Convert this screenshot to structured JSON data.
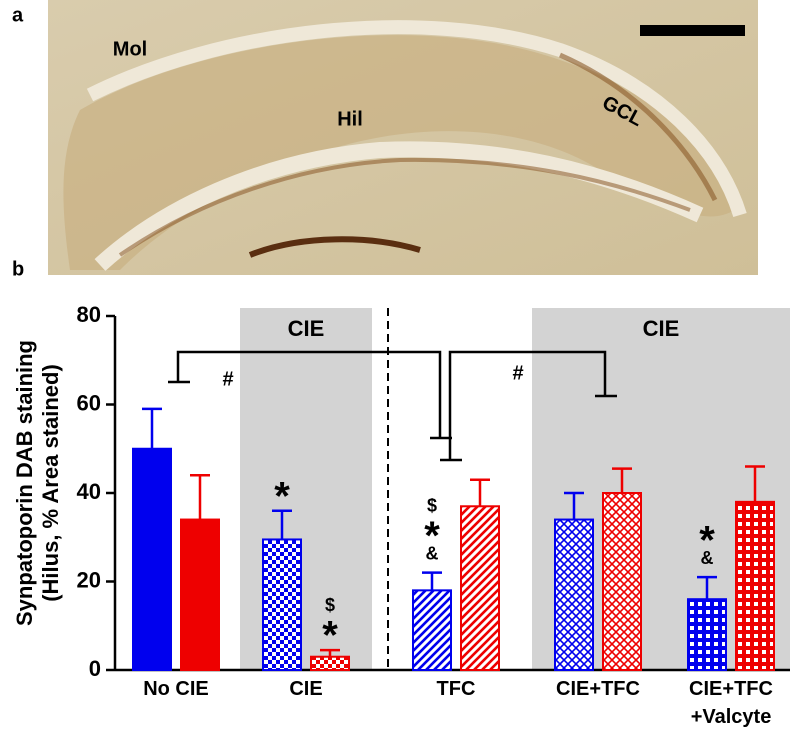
{
  "panel_a": {
    "label": "a",
    "regions": [
      "Mol",
      "Hil",
      "GCL"
    ]
  },
  "chart_data": {
    "type": "bar",
    "panel_label": "b",
    "y_label": [
      "Synpatoporin DAB staining",
      "(Hilus, % Area stained)"
    ],
    "categories": [
      "No CIE",
      "CIE",
      "TFC",
      "CIE+TFC",
      "CIE+TFC\n+Valcyte"
    ],
    "fills": [
      "solid",
      "checker",
      "hatch",
      "diamond",
      "grid"
    ],
    "shaded_groups": [
      {
        "label": "CIE",
        "from": 1,
        "to": 1
      },
      {
        "label": "CIE",
        "from": 3,
        "to": 4
      }
    ],
    "series": [
      {
        "color": "#0000ee",
        "values": [
          50,
          29.5,
          18,
          34,
          16
        ],
        "errors": [
          9,
          6.5,
          4,
          6,
          5
        ]
      },
      {
        "color": "#ee0000",
        "values": [
          34,
          3,
          37,
          40,
          38
        ],
        "errors": [
          10,
          1.5,
          6,
          5.5,
          8
        ]
      }
    ],
    "annotations": [
      {
        "group": 1,
        "series": 0,
        "symbols": [
          "*"
        ]
      },
      {
        "group": 1,
        "series": 1,
        "symbols": [
          "*",
          "$"
        ]
      },
      {
        "group": 2,
        "series": 0,
        "symbols": [
          "&",
          "*",
          "$"
        ]
      },
      {
        "group": 4,
        "series": 0,
        "symbols": [
          "&",
          "*"
        ]
      }
    ],
    "bracket_labels": [
      "#",
      "#"
    ],
    "ylim": [
      0,
      80
    ],
    "yticks": [
      0,
      20,
      40,
      60,
      80
    ]
  }
}
